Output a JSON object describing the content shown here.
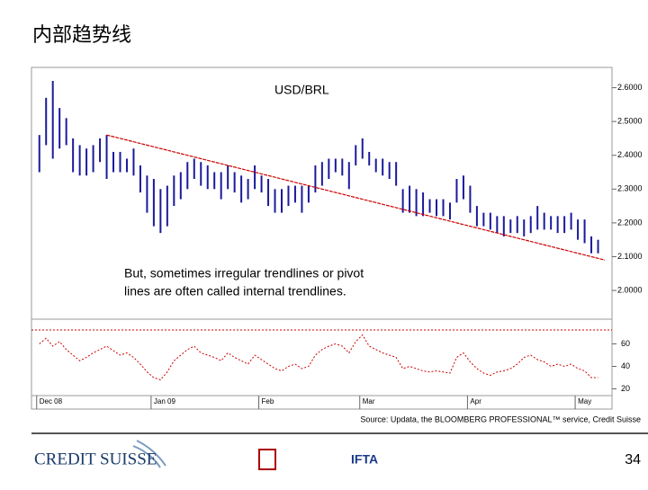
{
  "title": "内部趋势线",
  "chart_data": {
    "type": "ohlc",
    "annotations": [
      "USD/BRL",
      "But, sometimes irregular trendlines or pivot",
      "lines are often called internal trendlines."
    ],
    "color": "#1a1a9c",
    "xlim": [
      0.5,
      85
    ],
    "xticks": [
      {
        "value": 1,
        "label": "Dec 08"
      },
      {
        "value": 18,
        "label": "Jan 09"
      },
      {
        "value": 34,
        "label": "Feb"
      },
      {
        "value": 49,
        "label": "Mar"
      },
      {
        "value": 65,
        "label": "Apr"
      },
      {
        "value": 81,
        "label": "May"
      }
    ],
    "high": [
      2.46,
      2.57,
      2.62,
      2.54,
      2.51,
      2.45,
      2.43,
      2.42,
      2.43,
      2.45,
      2.46,
      2.41,
      2.41,
      2.39,
      2.42,
      2.37,
      2.34,
      2.33,
      2.3,
      2.31,
      2.34,
      2.35,
      2.38,
      2.39,
      2.38,
      2.37,
      2.35,
      2.35,
      2.37,
      2.35,
      2.34,
      2.33,
      2.37,
      2.34,
      2.33,
      2.3,
      2.3,
      2.31,
      2.31,
      2.31,
      2.31,
      2.37,
      2.38,
      2.39,
      2.39,
      2.39,
      2.38,
      2.43,
      2.45,
      2.41,
      2.39,
      2.39,
      2.38,
      2.38,
      2.3,
      2.31,
      2.3,
      2.29,
      2.27,
      2.27,
      2.27,
      2.26,
      2.33,
      2.34,
      2.31,
      2.25,
      2.23,
      2.23,
      2.22,
      2.22,
      2.21,
      2.22,
      2.21,
      2.22,
      2.25,
      2.23,
      2.22,
      2.22,
      2.22,
      2.23,
      2.21,
      2.21,
      2.16,
      2.15
    ],
    "low": [
      2.35,
      2.43,
      2.39,
      2.42,
      2.43,
      2.35,
      2.34,
      2.34,
      2.35,
      2.38,
      2.33,
      2.35,
      2.35,
      2.35,
      2.34,
      2.29,
      2.23,
      2.19,
      2.17,
      2.19,
      2.25,
      2.27,
      2.3,
      2.33,
      2.31,
      2.3,
      2.3,
      2.27,
      2.3,
      2.29,
      2.26,
      2.27,
      2.3,
      2.29,
      2.25,
      2.23,
      2.23,
      2.25,
      2.26,
      2.23,
      2.26,
      2.29,
      2.31,
      2.33,
      2.35,
      2.34,
      2.3,
      2.37,
      2.39,
      2.37,
      2.35,
      2.34,
      2.33,
      2.31,
      2.23,
      2.23,
      2.22,
      2.22,
      2.23,
      2.22,
      2.22,
      2.21,
      2.26,
      2.27,
      2.23,
      2.19,
      2.19,
      2.18,
      2.17,
      2.16,
      2.17,
      2.17,
      2.16,
      2.17,
      2.18,
      2.18,
      2.18,
      2.17,
      2.17,
      2.18,
      2.15,
      2.14,
      2.11,
      2.11
    ],
    "ylim": [
      1.915,
      2.66
    ],
    "yticks": [
      {
        "value": 2.6,
        "label": "2.6000"
      },
      {
        "value": 2.5,
        "label": "2.5000"
      },
      {
        "value": 2.4,
        "label": "2.4000"
      },
      {
        "value": 2.3,
        "label": "2.3000"
      },
      {
        "value": 2.2,
        "label": "2.2000"
      },
      {
        "value": 2.1,
        "label": "2.1000"
      },
      {
        "value": 2,
        "label": "2.0000"
      }
    ],
    "trendline": {
      "color": "#cc0000",
      "x": [
        11,
        85
      ],
      "y": [
        2.46,
        2.09
      ]
    },
    "rsi": {
      "color": "#cc0000",
      "values": [
        60,
        65,
        58,
        62,
        55,
        50,
        45,
        48,
        52,
        55,
        58,
        54,
        50,
        52,
        48,
        42,
        35,
        30,
        28,
        35,
        45,
        50,
        55,
        58,
        52,
        50,
        48,
        45,
        52,
        48,
        45,
        42,
        50,
        46,
        42,
        38,
        36,
        40,
        42,
        38,
        40,
        50,
        55,
        58,
        60,
        58,
        52,
        62,
        68,
        58,
        55,
        52,
        50,
        48,
        38,
        40,
        38,
        36,
        35,
        36,
        35,
        34,
        48,
        52,
        44,
        38,
        34,
        32,
        35,
        36,
        38,
        42,
        48,
        50,
        46,
        44,
        40,
        42,
        40,
        42,
        38,
        36,
        30,
        30
      ],
      "ylim": [
        14,
        82
      ],
      "yticks": [
        60,
        40,
        20
      ]
    }
  },
  "source": "Source: Updata, the BLOOMBERG PROFESSIONAL™ service, Credit Suisse",
  "footer": {
    "logo": "CREDIT SUISSE",
    "partner": "IFTA",
    "page_number": "34"
  }
}
